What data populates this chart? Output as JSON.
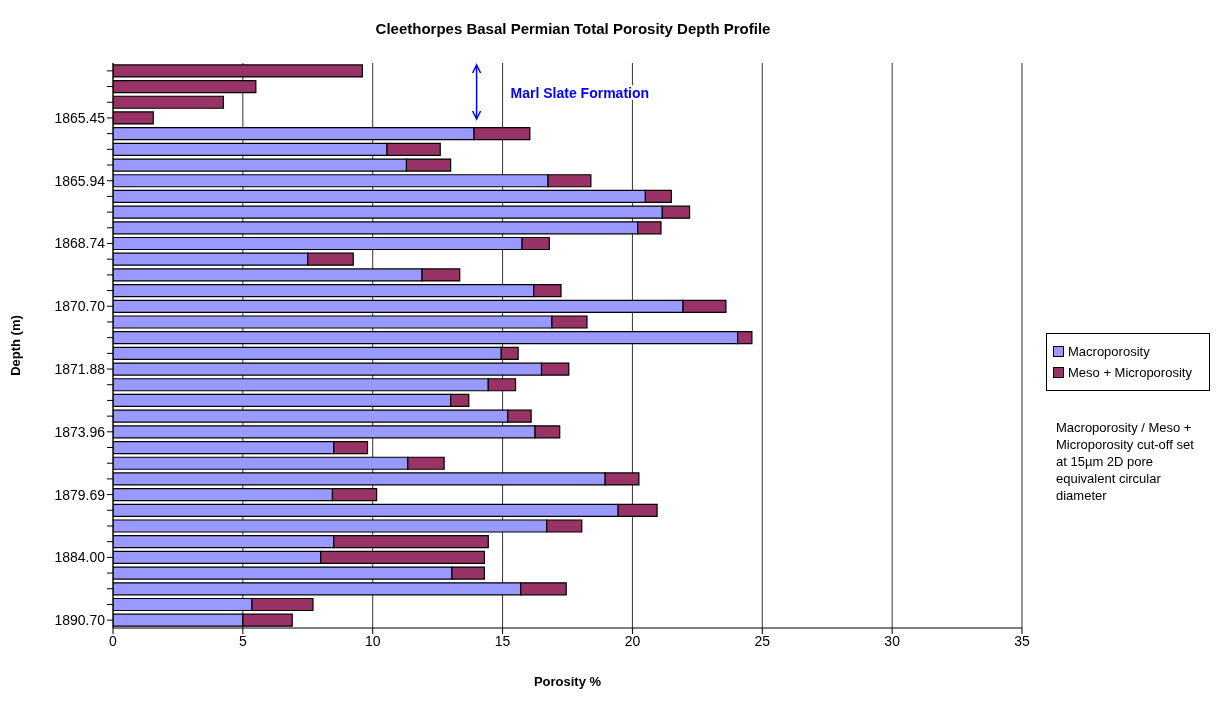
{
  "chart_data": {
    "type": "bar",
    "orientation": "horizontal",
    "stacked": true,
    "title": "Cleethorpes Basal Permian Total Porosity Depth Profile",
    "xlabel": "Porosity %",
    "ylabel": "Depth (m)",
    "categories": [
      null,
      null,
      null,
      "1865.45",
      null,
      null,
      null,
      "1865.94",
      null,
      null,
      null,
      "1868.74",
      null,
      null,
      null,
      "1870.70",
      null,
      null,
      null,
      "1871.88",
      null,
      null,
      null,
      "1873.96",
      null,
      null,
      null,
      "1879.69",
      null,
      null,
      null,
      "1884.00",
      null,
      null,
      null,
      "1890.70"
    ],
    "series": [
      {
        "name": "Macroporosity",
        "color": "#9999ff",
        "values": [
          0,
          0,
          0,
          0,
          13.9,
          10.55,
          11.3,
          16.75,
          20.5,
          21.15,
          20.2,
          15.75,
          7.5,
          11.9,
          16.2,
          21.95,
          16.9,
          24.05,
          14.95,
          16.5,
          14.45,
          13.0,
          15.2,
          16.25,
          8.5,
          11.35,
          18.95,
          8.45,
          19.45,
          16.7,
          8.5,
          8.0,
          13.05,
          15.7,
          5.35,
          5.0
        ]
      },
      {
        "name": "Meso + Microporosity",
        "color": "#993366",
        "values": [
          9.6,
          5.5,
          4.25,
          1.55,
          2.15,
          2.05,
          1.7,
          1.65,
          1.0,
          1.05,
          0.9,
          1.05,
          1.75,
          1.45,
          1.05,
          1.65,
          1.35,
          0.55,
          0.65,
          1.05,
          1.05,
          0.7,
          0.9,
          0.95,
          1.3,
          1.4,
          1.3,
          1.7,
          1.5,
          1.35,
          5.95,
          6.3,
          1.25,
          1.75,
          2.35,
          1.9
        ]
      }
    ],
    "xlim": [
      0,
      35
    ],
    "xticks": [
      0,
      5,
      10,
      15,
      20,
      25,
      30,
      35
    ],
    "grid": "x",
    "legend": "right",
    "annotations": [
      "Marl Slate Formation",
      "Macroporosity / Meso + Microporosity cut-off set at 15µm 2D pore equivalent circular diameter"
    ]
  }
}
